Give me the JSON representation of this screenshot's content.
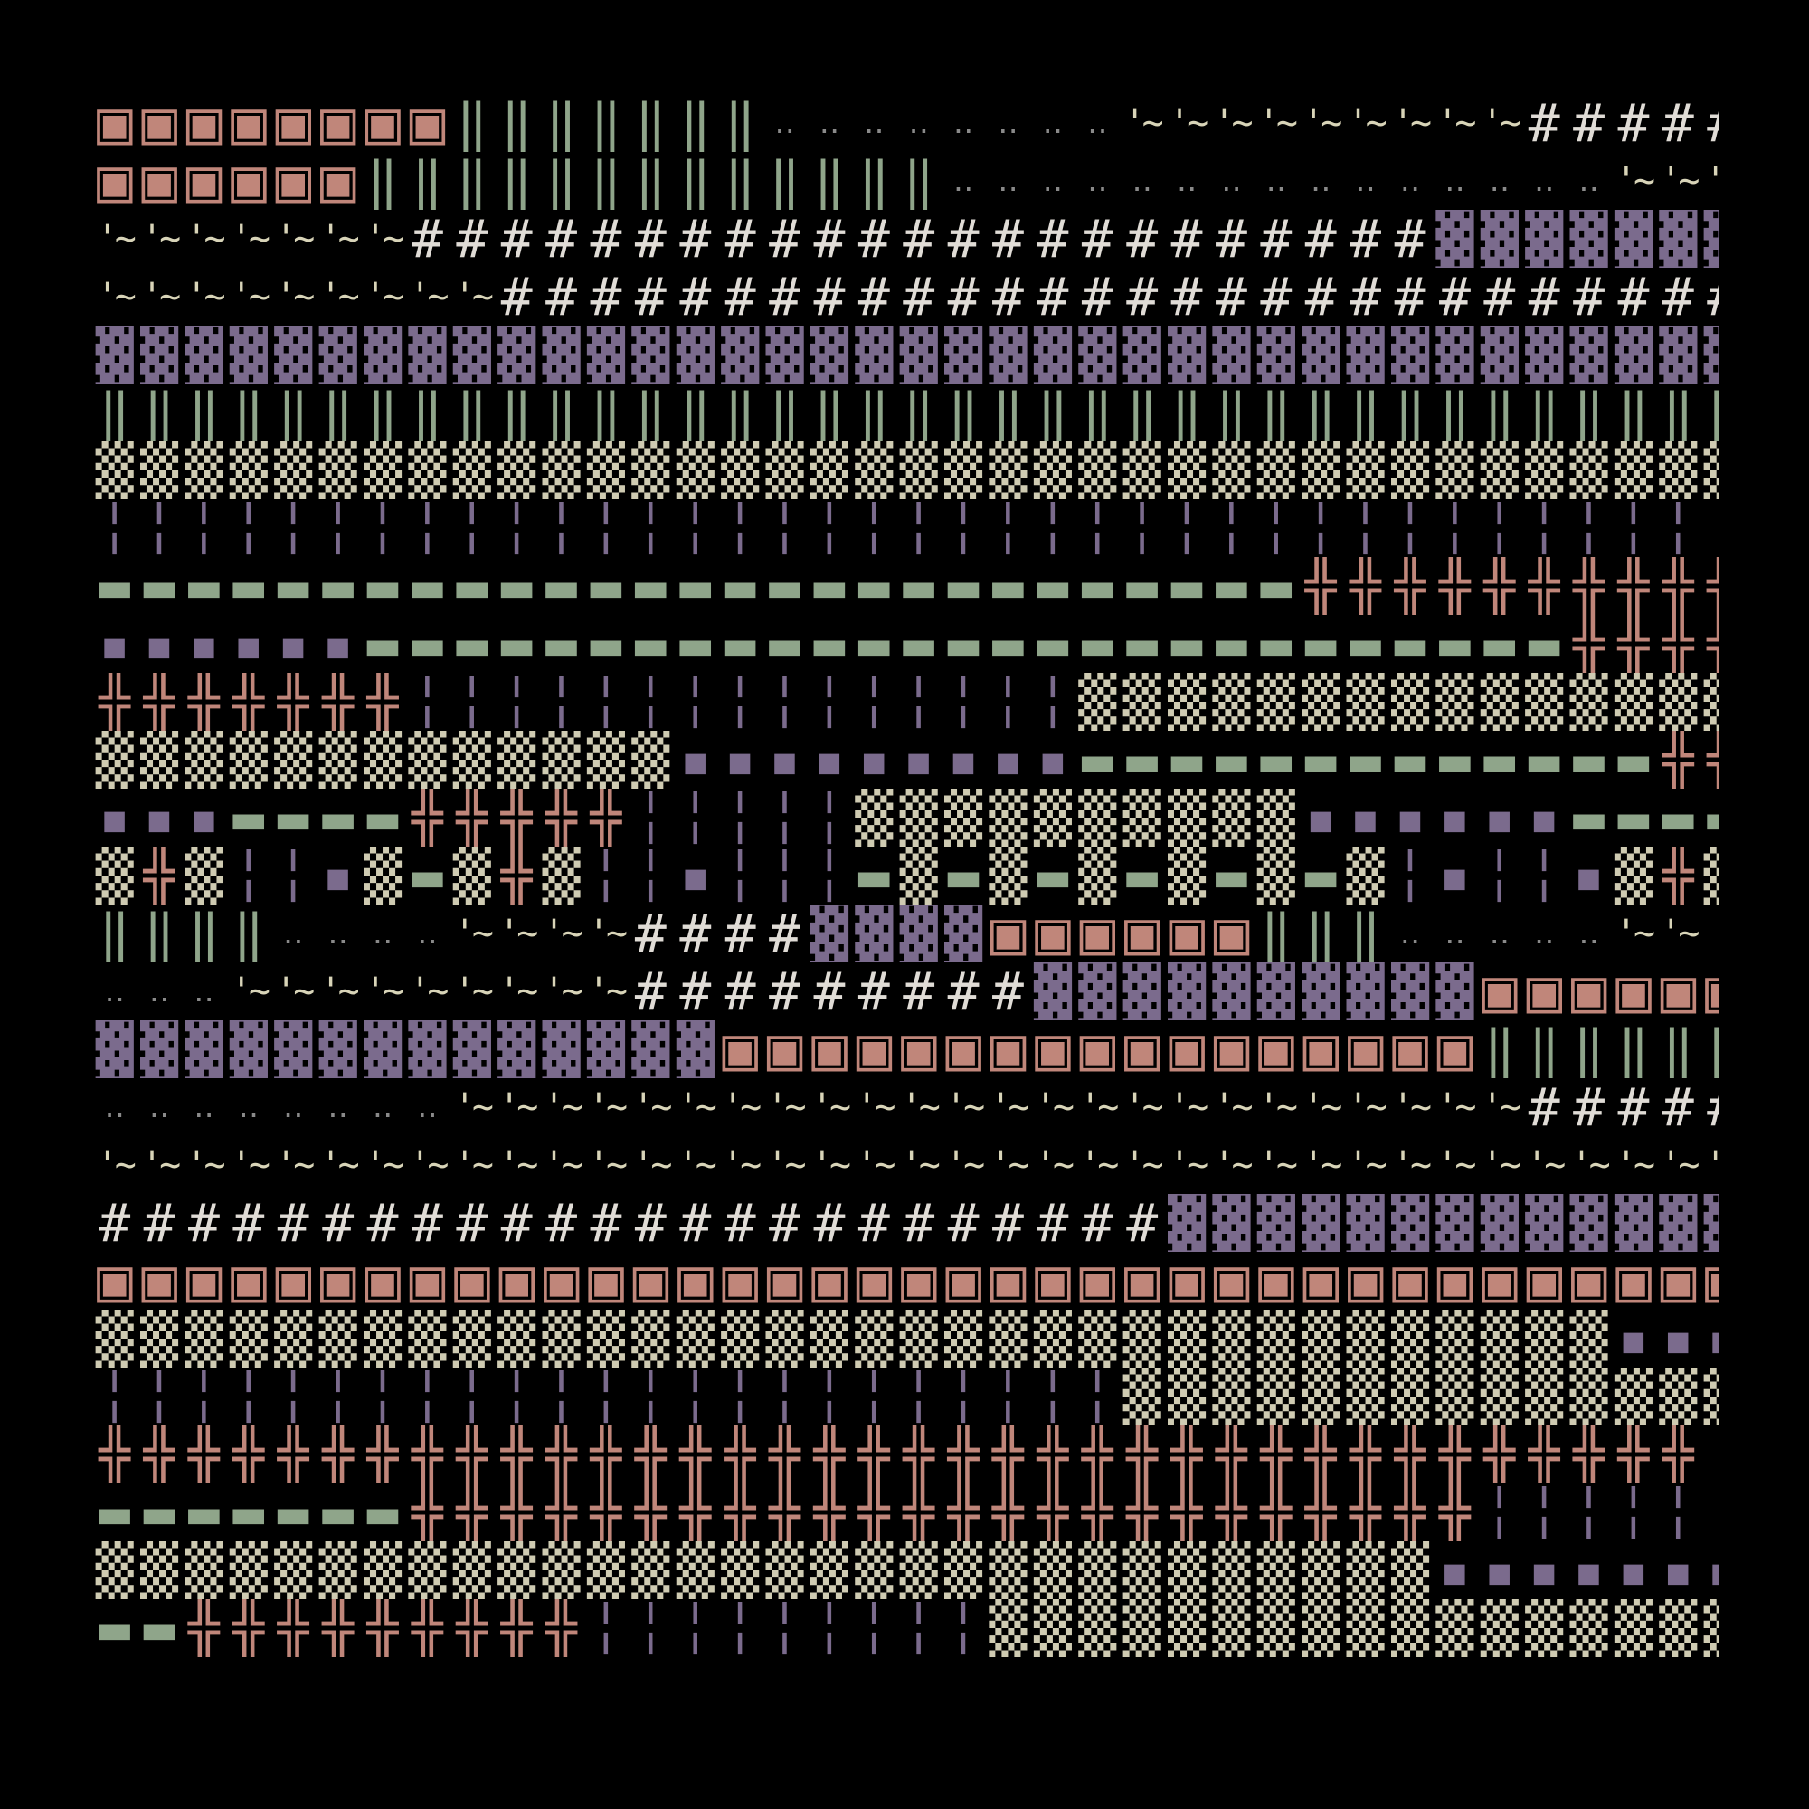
{
  "glyphs": {
    "M": {
      "char": "▣",
      "color": "#c0867a"
    },
    "B": {
      "char": "▓",
      "color": "#7b6b8d"
    },
    "D": {
      "char": "▒",
      "color": "#cfcbb2"
    },
    "V": {
      "char": "‖",
      "color": "#8fa58a"
    },
    "X": {
      "char": "╬",
      "color": "#c0867a"
    },
    "G": {
      "char": "▬",
      "color": "#8fa58a"
    },
    "P": {
      "char": "▪",
      "color": "#7b6b8d"
    },
    "L": {
      "char": "╎",
      "color": "#7b6b8d"
    },
    "H": {
      "char": "#",
      "color": "#e0dcd6"
    },
    "T": {
      "char": "'~",
      "color": "#d8d4b8"
    },
    "o": {
      "char": "‥",
      "color": "#8a8a8a"
    }
  },
  "rows": [
    "MMMMMMMMVVVVVVVooooooooTTTTTTTTTHHHHHH",
    "MMMMMMVVVVVVVVVVVVVoooooooooooooooTTT",
    "TTTTTTTHHHHHHHHHHHHHHHHHHHHHHHBBBBBBB",
    "TTTTTTTTTHHHHHHHHHHHHHHHHHHHHHHHHHHHH",
    "BBBBBBBBBBBBBBBBBBBBBBBBBBBBBBBBBBBBB",
    "VVVVVVVVVVVVVVVVVVVVVVVVVVVVVVVVVVVVV",
    "DDDDDDDDDDDDDDDDDDDDDDDDDDDDDDDDDDDDD",
    "LLLLLLLLLLLLLLLLLLLLLLLLLLLLLLLLLLLLL",
    "GGGGGGGGGGGGGGGGGGGGGGGGGGGXXXXXXXXXX",
    "PPPPPPGGGGGGGGGGGGGGGGGGGGGGGGGGGXXXX",
    "XXXXXXXLLLLLLLLLLLLLLLDDDDDDDDDDDDDDD",
    "DDDDDDDDDDDDDPPPPPPPPPGGGGGGGGGGGGGXX",
    "PPPGGGGXXXXXLLLLLDDDDDDDDDDPPPPPPGGGG",
    "DXDLLPDGDXDLLPLLLGDGDGDGDGDGDLPLLPDXD",
    "VVVVooooTTTTHHHHBBBBMMMMMMVVVoooooTT",
    "oooTTTTTTTTTHHHHHHHHHBBBBBBBBBBMMMMMM",
    "BBBBBBBBBBBBBBMMMMMMMMMMMMMMMMMVVVVVV",
    "ooooooooTTTTTTTTTTTTTTTTTTTTTTTTHHHHH",
    "TTTTTTTTTTTTTTTTTTTTTTTTTTTTTTTTTTTTT",
    "HHHHHHHHHHHHHHHHHHHHHHHHBBBBBBBBBBBBB",
    "MMMMMMMMMMMMMMMMMMMMMMMMMMMMMMMMMMMMM",
    "DDDDDDDDDDDDDDDDDDDDDDDDDDDDDDDDDDPPP",
    "LLLLLLLLLLLLLLLLLLLLLLLDDDDDDDDDDDDDD",
    "XXXXXXXXXXXXXXXXXXXXXXXXXXXXXXXXXXXXL",
    "GGGGGGGXXXXXXXXXXXXXXXXXXXXXXXXLLLLLL",
    "DDDDDDDDDDDDDDDDDDDDDDDDDDDDDDPPPPPPP",
    "GGXXXXXXXXXLLLLLLLLLDDDDDDDDDDDDDDDDD"
  ]
}
